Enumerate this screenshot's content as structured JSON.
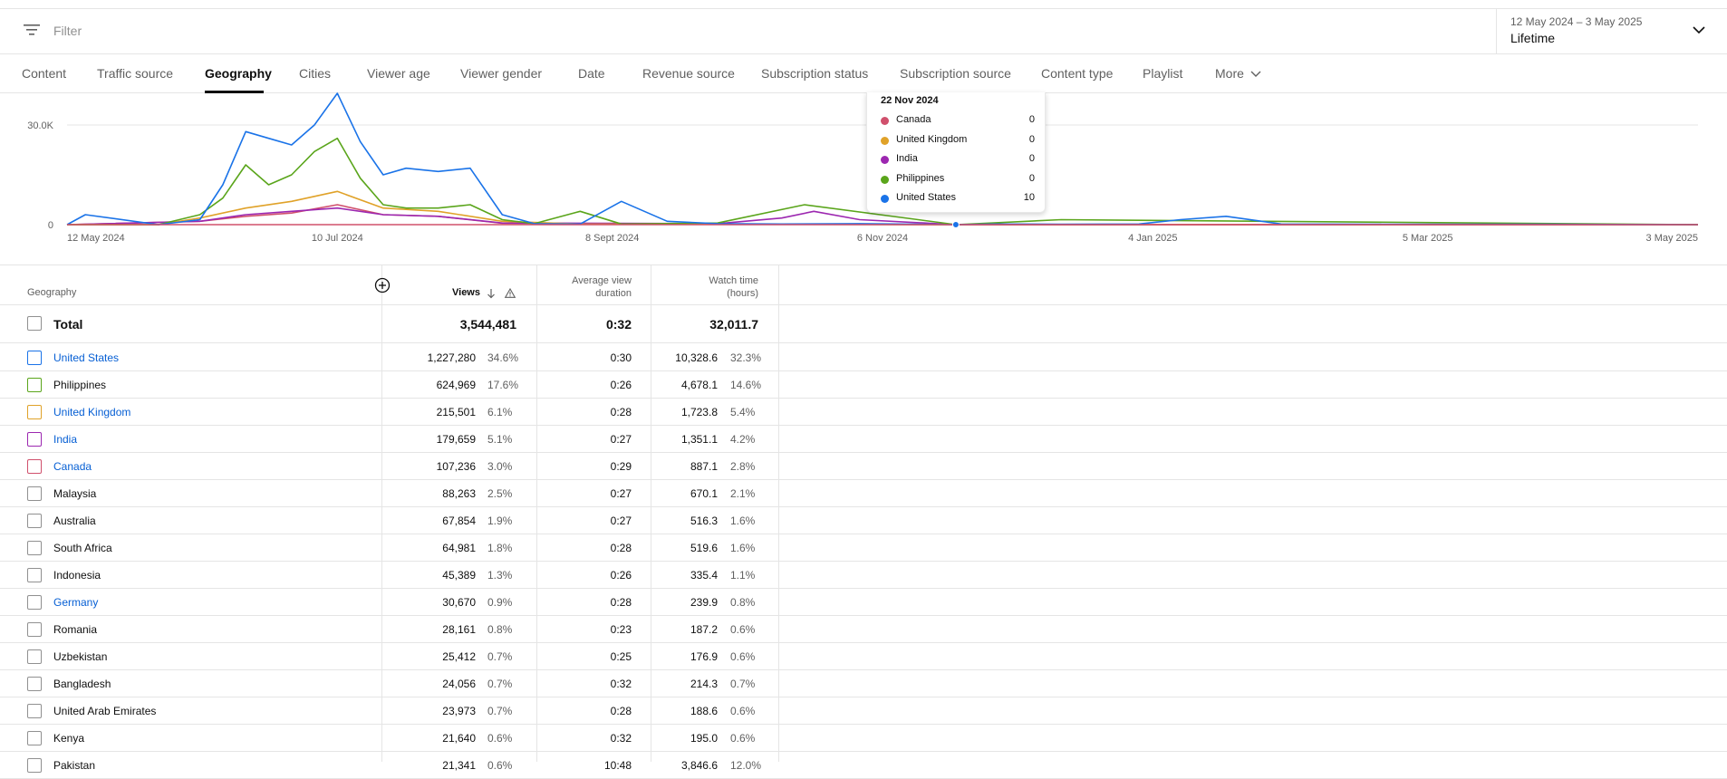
{
  "filter": {
    "placeholder": "Filter",
    "icon": "filter-icon"
  },
  "date_selector": {
    "range": "12 May 2024 – 3 May 2025",
    "label": "Lifetime"
  },
  "tabs": [
    {
      "label": "Content",
      "active": false
    },
    {
      "label": "Traffic source",
      "active": false
    },
    {
      "label": "Geography",
      "active": true
    },
    {
      "label": "Cities",
      "active": false
    },
    {
      "label": "Viewer age",
      "active": false
    },
    {
      "label": "Viewer gender",
      "active": false
    },
    {
      "label": "Date",
      "active": false
    },
    {
      "label": "Revenue source",
      "active": false
    },
    {
      "label": "Subscription status",
      "active": false
    },
    {
      "label": "Subscription source",
      "active": false
    },
    {
      "label": "Content type",
      "active": false
    },
    {
      "label": "Playlist",
      "active": false
    },
    {
      "label": "More",
      "active": false
    }
  ],
  "chart_data": {
    "type": "line",
    "y_ticks": [
      "30.0K",
      "0"
    ],
    "ylim": [
      0,
      40000
    ],
    "x_tick_labels": [
      "12 May 2024",
      "10 Jul 2024",
      "8 Sept 2024",
      "6 Nov 2024",
      "4 Jan 2025",
      "5 Mar 2025",
      "3 May 2025"
    ],
    "grid": true,
    "series": [
      {
        "name": "United States",
        "color": "#1a73e8",
        "x": [
          "12 May 2024",
          "16 May 2024",
          "1 Jun 2024",
          "10 Jun 2024",
          "15 Jun 2024",
          "20 Jun 2024",
          "25 Jun 2024",
          "30 Jun 2024",
          "5 Jul 2024",
          "10 Jul 2024",
          "15 Jul 2024",
          "20 Jul 2024",
          "25 Jul 2024",
          "1 Aug 2024",
          "8 Aug 2024",
          "15 Aug 2024",
          "22 Aug 2024",
          "1 Sept 2024",
          "10 Sept 2024",
          "20 Sept 2024",
          "1 Oct 2024",
          "15 Oct 2024",
          "1 Nov 2024",
          "22 Nov 2024",
          "1 Dec 2024",
          "15 Dec 2024",
          "1 Jan 2025",
          "10 Jan 2025",
          "20 Jan 2025",
          "1 Feb 2025",
          "1 Mar 2025",
          "1 Apr 2025",
          "3 May 2025"
        ],
        "values": [
          0,
          3000,
          0,
          1500,
          12000,
          28000,
          26000,
          24000,
          30000,
          40000,
          25000,
          15000,
          17000,
          16000,
          17000,
          3000,
          300,
          200,
          7000,
          1000,
          300,
          200,
          300,
          10,
          200,
          100,
          200,
          1500,
          2500,
          200,
          100,
          100,
          0
        ]
      },
      {
        "name": "Philippines",
        "color": "#5aa51b",
        "x": [
          "12 May 2024",
          "1 Jun 2024",
          "10 Jun 2024",
          "15 Jun 2024",
          "20 Jun 2024",
          "25 Jun 2024",
          "30 Jun 2024",
          "5 Jul 2024",
          "10 Jul 2024",
          "15 Jul 2024",
          "20 Jul 2024",
          "25 Jul 2024",
          "1 Aug 2024",
          "8 Aug 2024",
          "15 Aug 2024",
          "22 Aug 2024",
          "1 Sept 2024",
          "10 Sept 2024",
          "1 Oct 2024",
          "20 Oct 2024",
          "22 Nov 2024",
          "15 Dec 2024",
          "3 May 2025"
        ],
        "values": [
          0,
          0,
          3000,
          8000,
          18000,
          12000,
          15000,
          22000,
          26000,
          14000,
          6000,
          5000,
          5000,
          6000,
          1500,
          300,
          4000,
          200,
          500,
          6000,
          0,
          1500,
          0
        ]
      },
      {
        "name": "United Kingdom",
        "color": "#e0a229",
        "x": [
          "12 May 2024",
          "1 Jun 2024",
          "10 Jun 2024",
          "20 Jun 2024",
          "30 Jun 2024",
          "10 Jul 2024",
          "20 Jul 2024",
          "1 Aug 2024",
          "15 Aug 2024",
          "1 Sept 2024",
          "22 Nov 2024",
          "3 May 2025"
        ],
        "values": [
          0,
          0,
          2000,
          5000,
          7000,
          10000,
          5000,
          4000,
          1000,
          200,
          0,
          0
        ]
      },
      {
        "name": "India",
        "color": "#9c27b0",
        "x": [
          "12 May 2024",
          "10 Jun 2024",
          "20 Jun 2024",
          "30 Jun 2024",
          "10 Jul 2024",
          "20 Jul 2024",
          "1 Aug 2024",
          "15 Aug 2024",
          "1 Oct 2024",
          "15 Oct 2024",
          "22 Oct 2024",
          "1 Nov 2024",
          "22 Nov 2024",
          "3 May 2025"
        ],
        "values": [
          0,
          1000,
          3000,
          4000,
          5000,
          3000,
          2500,
          500,
          300,
          2000,
          4000,
          1500,
          0,
          0
        ]
      },
      {
        "name": "Canada",
        "color": "#d0506c",
        "x": [
          "12 May 2024",
          "10 Jun 2024",
          "20 Jun 2024",
          "30 Jun 2024",
          "10 Jul 2024",
          "20 Jul 2024",
          "1 Aug 2024",
          "15 Aug 2024",
          "22 Nov 2024",
          "3 May 2025"
        ],
        "values": [
          0,
          1000,
          2500,
          3500,
          6000,
          3000,
          2500,
          400,
          0,
          0
        ]
      }
    ],
    "cursor_date": "22 Nov 2024"
  },
  "tooltip": {
    "date": "22 Nov 2024",
    "rows": [
      {
        "name": "Canada",
        "value": "0",
        "color": "#d0506c"
      },
      {
        "name": "United Kingdom",
        "value": "0",
        "color": "#e0a229"
      },
      {
        "name": "India",
        "value": "0",
        "color": "#9c27b0"
      },
      {
        "name": "Philippines",
        "value": "0",
        "color": "#5aa51b"
      },
      {
        "name": "United States",
        "value": "10",
        "color": "#1a73e8"
      }
    ]
  },
  "table": {
    "headers": {
      "geography": "Geography",
      "views": "Views",
      "avd_line1": "Average view",
      "avd_line2": "duration",
      "wt_line1": "Watch time",
      "wt_line2": "(hours)"
    },
    "total": {
      "label": "Total",
      "views": "3,544,481",
      "avd": "0:32",
      "wt": "32,011.7"
    },
    "rows": [
      {
        "name": "United States",
        "link": true,
        "color": "#1a73e8",
        "views": "1,227,280",
        "vpct": "34.6%",
        "avd": "0:30",
        "wt": "10,328.6",
        "wpct": "32.3%"
      },
      {
        "name": "Philippines",
        "link": false,
        "color": "#5aa51b",
        "views": "624,969",
        "vpct": "17.6%",
        "avd": "0:26",
        "wt": "4,678.1",
        "wpct": "14.6%"
      },
      {
        "name": "United Kingdom",
        "link": true,
        "color": "#e0a229",
        "views": "215,501",
        "vpct": "6.1%",
        "avd": "0:28",
        "wt": "1,723.8",
        "wpct": "5.4%"
      },
      {
        "name": "India",
        "link": true,
        "color": "#9c27b0",
        "views": "179,659",
        "vpct": "5.1%",
        "avd": "0:27",
        "wt": "1,351.1",
        "wpct": "4.2%"
      },
      {
        "name": "Canada",
        "link": true,
        "color": "#d0506c",
        "views": "107,236",
        "vpct": "3.0%",
        "avd": "0:29",
        "wt": "887.1",
        "wpct": "2.8%"
      },
      {
        "name": "Malaysia",
        "link": false,
        "color": "",
        "views": "88,263",
        "vpct": "2.5%",
        "avd": "0:27",
        "wt": "670.1",
        "wpct": "2.1%"
      },
      {
        "name": "Australia",
        "link": false,
        "color": "",
        "views": "67,854",
        "vpct": "1.9%",
        "avd": "0:27",
        "wt": "516.3",
        "wpct": "1.6%"
      },
      {
        "name": "South Africa",
        "link": false,
        "color": "",
        "views": "64,981",
        "vpct": "1.8%",
        "avd": "0:28",
        "wt": "519.6",
        "wpct": "1.6%"
      },
      {
        "name": "Indonesia",
        "link": false,
        "color": "",
        "views": "45,389",
        "vpct": "1.3%",
        "avd": "0:26",
        "wt": "335.4",
        "wpct": "1.1%"
      },
      {
        "name": "Germany",
        "link": true,
        "color": "",
        "views": "30,670",
        "vpct": "0.9%",
        "avd": "0:28",
        "wt": "239.9",
        "wpct": "0.8%"
      },
      {
        "name": "Romania",
        "link": false,
        "color": "",
        "views": "28,161",
        "vpct": "0.8%",
        "avd": "0:23",
        "wt": "187.2",
        "wpct": "0.6%"
      },
      {
        "name": "Uzbekistan",
        "link": false,
        "color": "",
        "views": "25,412",
        "vpct": "0.7%",
        "avd": "0:25",
        "wt": "176.9",
        "wpct": "0.6%"
      },
      {
        "name": "Bangladesh",
        "link": false,
        "color": "",
        "views": "24,056",
        "vpct": "0.7%",
        "avd": "0:32",
        "wt": "214.3",
        "wpct": "0.7%"
      },
      {
        "name": "United Arab Emirates",
        "link": false,
        "color": "",
        "views": "23,973",
        "vpct": "0.7%",
        "avd": "0:28",
        "wt": "188.6",
        "wpct": "0.6%"
      },
      {
        "name": "Kenya",
        "link": false,
        "color": "",
        "views": "21,640",
        "vpct": "0.6%",
        "avd": "0:32",
        "wt": "195.0",
        "wpct": "0.6%"
      },
      {
        "name": "Pakistan",
        "link": false,
        "color": "",
        "views": "21,341",
        "vpct": "0.6%",
        "avd": "10:48",
        "wt": "3,846.6",
        "wpct": "12.0%"
      }
    ]
  }
}
